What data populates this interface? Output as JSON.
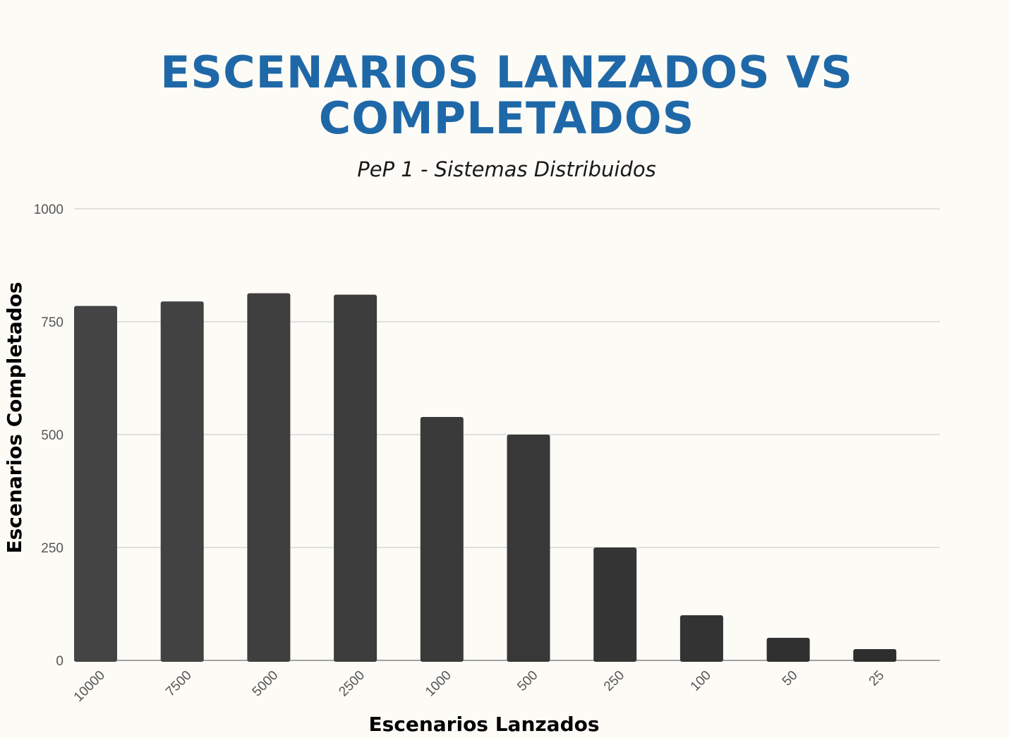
{
  "chart_data": {
    "type": "bar",
    "title_lines": [
      "ESCENARIOS LANZADOS VS",
      "COMPLETADOS"
    ],
    "subtitle": "PeP 1 - Sistemas Distribuidos",
    "xlabel": "Escenarios Lanzados",
    "ylabel": "Escenarios Completados",
    "categories": [
      "10000",
      "7500",
      "5000",
      "2500",
      "1000",
      "500",
      "250",
      "100",
      "50",
      "25"
    ],
    "values": [
      785,
      795,
      813,
      810,
      539,
      500,
      250,
      100,
      50,
      25
    ],
    "ylim": [
      0,
      1000
    ],
    "yticks": [
      0,
      250,
      500,
      750,
      1000
    ],
    "grid": true,
    "colors": {
      "bar_start": "#444444",
      "bar_end": "#2e2e2e",
      "title": "#1f68a8"
    }
  }
}
